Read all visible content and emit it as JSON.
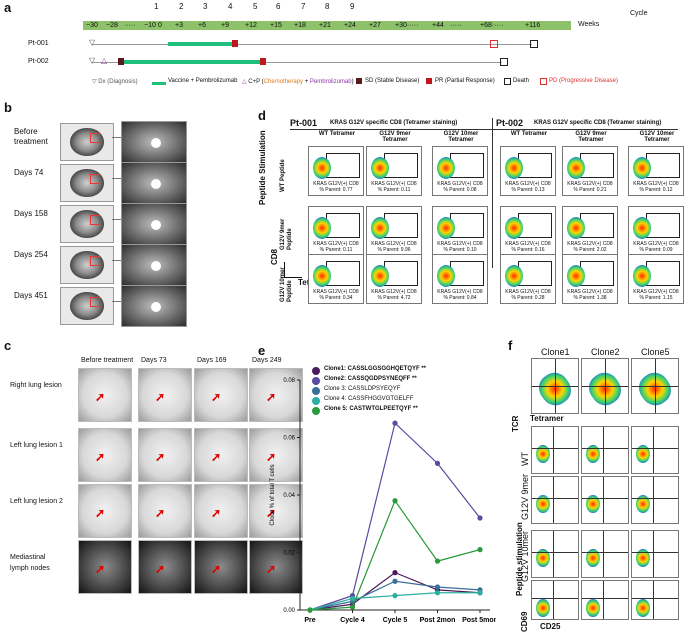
{
  "panels": {
    "a": "a",
    "b": "b",
    "c": "c",
    "d": "d",
    "e": "e",
    "f": "f"
  },
  "timeline": {
    "cycle_label": "Cycle",
    "weeks_label": "Weeks",
    "cycles": [
      "1",
      "2",
      "3",
      "4",
      "5",
      "6",
      "7",
      "8",
      "9"
    ],
    "weeks": [
      "−30",
      "−28",
      "·····",
      "−10",
      "0",
      "+3",
      "+6",
      "+9",
      "+12",
      "+15",
      "+18",
      "+21",
      "+24",
      "+27",
      "+30·····",
      "+44",
      "·····",
      "+68·····",
      "+116"
    ],
    "patients": [
      "Pt-001",
      "Pt-002"
    ],
    "legend": {
      "dx": "Dx (Diagnosis)",
      "vaccine": "Vaccine + Pembrolizumab",
      "cp_prefix": "C+P (",
      "cp_chemo": "Chemotherapy",
      "cp_plus": " + ",
      "cp_pembro": "Pembrolizumab",
      "cp_suffix": ")",
      "sd": "SD (Stable Disease)",
      "pr": "PR (Partial Response)",
      "death": "Death",
      "pd": "PD (Progressive Disease)"
    },
    "colors": {
      "bar": "#8dc26a",
      "treat": "#1dbf7a",
      "sd": "#5a1a1a",
      "pr": "#c0161e",
      "pd": "#e03030",
      "chemo": "#e07a1e",
      "pembro": "#8a3aa6"
    }
  },
  "b": {
    "rows": [
      "Before treatment",
      "Days 74",
      "Days 158",
      "Days 254",
      "Days 451"
    ]
  },
  "c": {
    "cols": [
      "Before treatment",
      "Days 73",
      "Days 169",
      "Days 249"
    ],
    "rows": [
      "Right lung lesion",
      "Left lung lesion 1",
      "Left lung lesion 2",
      "Mediastinal lymph nodes"
    ]
  },
  "d": {
    "title_left": "Pt-001",
    "title_right": "Pt-002",
    "subtitle": "KRAS G12V specific CD8 (Tetramer staining)",
    "cols": [
      "WT Tetramer",
      "G12V 9mer Tetramer",
      "G12V 10mer Tetramer"
    ],
    "rows": [
      "WT Peptide",
      "G12V 9mer Peptide",
      "G12V 10mer Peptide"
    ],
    "y_group": "Peptide Stimulation",
    "y_axis": "CD8",
    "x_axis": "Tetramer",
    "gate_label": "KRAS G12V(+) CD8",
    "pt1": [
      "% Parent: 0.77",
      "% Parent: 0.11",
      "% Parent: 0.08",
      "% Parent: 0.11",
      "% Parent: 9.96",
      "% Parent: 0.10",
      "% Parent: 0.34",
      "% Parent: 4.72",
      "% Parent: 0.84"
    ],
    "pt2": [
      "% Parent: 0.13",
      "% Parent: 0.21",
      "% Parent: 0.12",
      "% Parent: 0.16",
      "% Parent: 2.02",
      "% Parent: 0.09",
      "% Parent: 0.28",
      "% Parent: 1.38",
      "% Parent: 1.15"
    ]
  },
  "e": {
    "ylabel": "Clone % of total T cells",
    "legend": [
      {
        "name": "Clone1: CASSLGGSGGHQETQYF",
        "mark": "**"
      },
      {
        "name": "Clone2: CASSQGDPSYNEQFF",
        "mark": "**"
      },
      {
        "name": "Clone 3: CASSLDPSYEQYF",
        "mark": ""
      },
      {
        "name": "Clone 4: CASSFHGGVGTGELFF",
        "mark": ""
      },
      {
        "name": "Clone 5: CASTWTGLPEETQYF",
        "mark": "**"
      }
    ]
  },
  "chart_data": {
    "type": "line",
    "categories": [
      "Pre",
      "Cycle 4",
      "Cycle 5",
      "Post 2mon",
      "Post 5mon"
    ],
    "ylabel": "Clone % of total T cells",
    "ylim": [
      0,
      0.08
    ],
    "yticks": [
      "0.00",
      "0.02",
      "0.04",
      "0.06",
      "0.08"
    ],
    "series": [
      {
        "name": "Clone1: CASSLGGSGGHQETQYF **",
        "color": "#4a1a5c",
        "values": [
          0.0,
          0.002,
          0.013,
          0.007,
          0.006
        ]
      },
      {
        "name": "Clone2: CASSQGDPSYNEQFF **",
        "color": "#5a4aa0",
        "values": [
          0.0,
          0.005,
          0.065,
          0.051,
          0.032
        ]
      },
      {
        "name": "Clone 3: CASSLDPSYEQYF",
        "color": "#3a6f9a",
        "values": [
          0.0,
          0.003,
          0.01,
          0.008,
          0.007
        ]
      },
      {
        "name": "Clone 4: CASSFHGGVGTGELFF",
        "color": "#2ab0a0",
        "values": [
          0.0,
          0.004,
          0.005,
          0.006,
          0.006
        ]
      },
      {
        "name": "Clone 5: CASTWTGLPEETQYF **",
        "color": "#2a9a3a",
        "values": [
          0.0,
          0.001,
          0.038,
          0.017,
          0.021
        ]
      }
    ]
  },
  "f": {
    "clones": [
      "Clone1",
      "Clone2",
      "Clone5"
    ],
    "tcr": "TCR",
    "tetramer": "Tetramer",
    "group": "Peptide stimulation",
    "rows": [
      "WT",
      "G12V 9mer",
      "G12V 10mer"
    ],
    "y_axis": "CD69",
    "x_axis": "CD25"
  }
}
